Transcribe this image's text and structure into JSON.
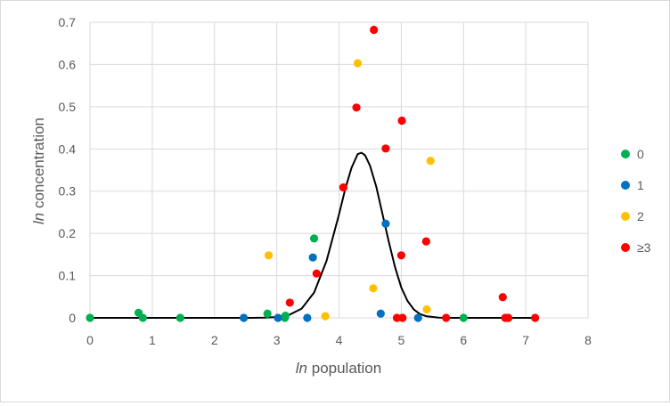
{
  "chart_data": {
    "type": "scatter",
    "title": "",
    "xlabel_italic": "ln",
    "xlabel_rest": " population",
    "ylabel_italic": "ln",
    "ylabel_rest": " concentration",
    "xlim": [
      0,
      8
    ],
    "ylim": [
      0,
      0.7
    ],
    "x_ticks": [
      0,
      1,
      2,
      3,
      4,
      5,
      6,
      7,
      8
    ],
    "y_ticks": [
      0,
      0.1,
      0.2,
      0.3,
      0.4,
      0.5,
      0.6,
      0.7
    ],
    "x_tick_labels": [
      "0",
      "1",
      "2",
      "3",
      "4",
      "5",
      "6",
      "7",
      "8"
    ],
    "y_tick_labels": [
      "0",
      "0.1",
      "0.2",
      "0.3",
      "0.4",
      "0.5",
      "0.6",
      "0.7"
    ],
    "grid": true,
    "legend_position": "right",
    "series": [
      {
        "name": "0",
        "color": "#00b050",
        "points": [
          [
            0,
            0
          ],
          [
            0.78,
            0.012
          ],
          [
            0.85,
            0
          ],
          [
            1.45,
            0
          ],
          [
            2.85,
            0.01
          ],
          [
            3.13,
            0
          ],
          [
            3.14,
            0.005
          ],
          [
            3.6,
            0.188
          ],
          [
            6.0,
            0
          ]
        ]
      },
      {
        "name": "1",
        "color": "#0070c0",
        "points": [
          [
            2.47,
            0
          ],
          [
            3.02,
            0
          ],
          [
            3.49,
            0
          ],
          [
            3.58,
            0.143
          ],
          [
            4.67,
            0.01
          ],
          [
            4.75,
            0.223
          ],
          [
            5.27,
            0
          ]
        ]
      },
      {
        "name": "2",
        "color": "#ffc000",
        "points": [
          [
            2.87,
            0.148
          ],
          [
            3.78,
            0.004
          ],
          [
            4.3,
            0.603
          ],
          [
            4.55,
            0.07
          ],
          [
            5.41,
            0.02
          ],
          [
            5.47,
            0.372
          ]
        ]
      },
      {
        "name": "≥3",
        "color": "#ff0000",
        "points": [
          [
            3.21,
            0.036
          ],
          [
            3.64,
            0.105
          ],
          [
            4.07,
            0.309
          ],
          [
            4.28,
            0.498
          ],
          [
            4.56,
            0.682
          ],
          [
            4.75,
            0.401
          ],
          [
            4.93,
            0
          ],
          [
            5.0,
            0.148
          ],
          [
            5.01,
            0.467
          ],
          [
            5.02,
            0
          ],
          [
            5.4,
            0.181
          ],
          [
            5.72,
            0
          ],
          [
            6.63,
            0.049
          ],
          [
            6.67,
            0
          ],
          [
            6.72,
            0
          ],
          [
            7.15,
            0
          ]
        ]
      }
    ],
    "curve": {
      "color": "#000000",
      "points": [
        [
          0,
          0
        ],
        [
          2.6,
          0
        ],
        [
          2.8,
          0.0005
        ],
        [
          3.0,
          0.002
        ],
        [
          3.2,
          0.007
        ],
        [
          3.4,
          0.022
        ],
        [
          3.6,
          0.06
        ],
        [
          3.8,
          0.135
        ],
        [
          4.0,
          0.245
        ],
        [
          4.1,
          0.305
        ],
        [
          4.2,
          0.355
        ],
        [
          4.3,
          0.388
        ],
        [
          4.36,
          0.391
        ],
        [
          4.42,
          0.385
        ],
        [
          4.5,
          0.36
        ],
        [
          4.6,
          0.31
        ],
        [
          4.7,
          0.245
        ],
        [
          4.8,
          0.18
        ],
        [
          4.9,
          0.12
        ],
        [
          5.0,
          0.072
        ],
        [
          5.1,
          0.04
        ],
        [
          5.2,
          0.02
        ],
        [
          5.3,
          0.009
        ],
        [
          5.4,
          0.004
        ],
        [
          5.6,
          0.0005
        ],
        [
          5.8,
          0
        ],
        [
          7.2,
          0
        ]
      ]
    }
  }
}
